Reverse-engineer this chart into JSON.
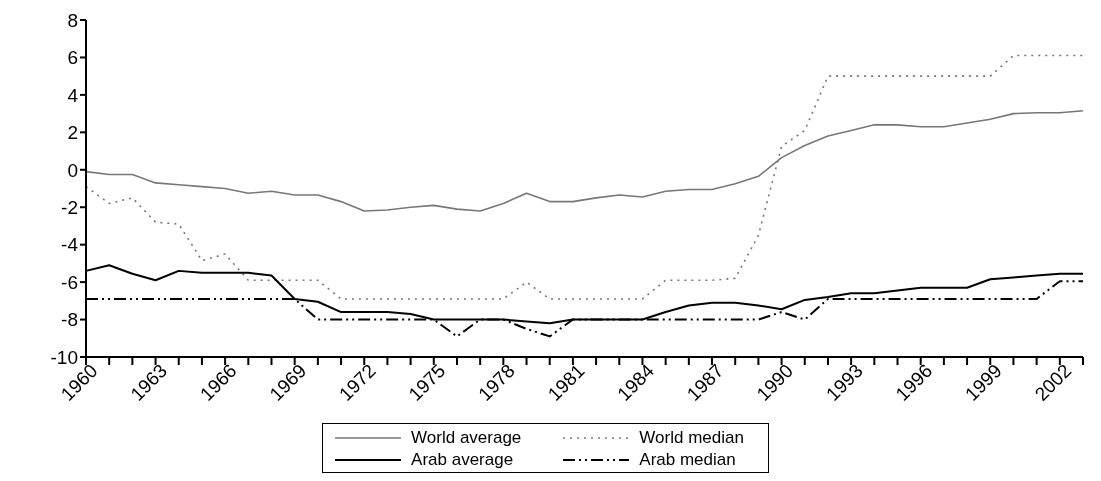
{
  "chart_data": {
    "type": "line",
    "categories": [
      "1960",
      null,
      null,
      "1963",
      null,
      null,
      "1966",
      null,
      null,
      "1969",
      null,
      null,
      "1972",
      null,
      null,
      "1975",
      null,
      null,
      "1978",
      null,
      null,
      "1981",
      null,
      null,
      "1984",
      null,
      null,
      "1987",
      null,
      null,
      "1990",
      null,
      null,
      "1993",
      null,
      null,
      "1996",
      null,
      null,
      "1999",
      null,
      null,
      "2002",
      null
    ],
    "series": [
      {
        "name": "World average",
        "color": "#777777",
        "line_style": "solid",
        "values": [
          -0.1,
          -0.25,
          -0.25,
          -0.7,
          -0.8,
          -0.9,
          -1.0,
          -1.25,
          -1.15,
          -1.35,
          -1.35,
          -1.7,
          -2.2,
          -2.15,
          -2.0,
          -1.9,
          -2.1,
          -2.2,
          -1.8,
          -1.25,
          -1.7,
          -1.7,
          -1.5,
          -1.35,
          -1.45,
          -1.15,
          -1.05,
          -1.05,
          -0.75,
          -0.35,
          0.65,
          1.3,
          1.8,
          2.1,
          2.4,
          2.4,
          2.3,
          2.3,
          2.5,
          2.7,
          3.0,
          3.05,
          3.05,
          3.15
        ]
      },
      {
        "name": "World median",
        "color": "#777777",
        "line_style": "dotted",
        "values": [
          -0.9,
          -1.8,
          -1.5,
          -2.8,
          -2.9,
          -4.85,
          -4.5,
          -5.9,
          -5.9,
          -5.9,
          -5.9,
          -6.9,
          -6.9,
          -6.9,
          -6.9,
          -6.9,
          -6.9,
          -6.9,
          -6.9,
          -6.0,
          -6.9,
          -6.9,
          -6.9,
          -6.9,
          -6.9,
          -5.9,
          -5.9,
          -5.9,
          -5.8,
          -3.5,
          1.25,
          2.1,
          5.0,
          5.0,
          5.0,
          5.0,
          5.0,
          5.0,
          5.0,
          5.0,
          6.1,
          6.1,
          6.1,
          6.1
        ]
      },
      {
        "name": "Arab average",
        "color": "#000000",
        "line_style": "solid",
        "values": [
          -5.4,
          -5.1,
          -5.55,
          -5.9,
          -5.4,
          -5.5,
          -5.5,
          -5.5,
          -5.65,
          -6.9,
          -7.05,
          -7.6,
          -7.6,
          -7.6,
          -7.7,
          -8.0,
          -8.0,
          -8.0,
          -8.0,
          -8.1,
          -8.2,
          -8.0,
          -8.0,
          -8.0,
          -8.0,
          -7.6,
          -7.25,
          -7.1,
          -7.1,
          -7.25,
          -7.45,
          -6.95,
          -6.8,
          -6.6,
          -6.6,
          -6.45,
          -6.3,
          -6.3,
          -6.3,
          -5.85,
          -5.75,
          -5.65,
          -5.55,
          -5.55
        ]
      },
      {
        "name": "Arab median",
        "color": "#000000",
        "line_style": "dashdot",
        "values": [
          -6.9,
          -6.9,
          -6.9,
          -6.9,
          -6.9,
          -6.9,
          -6.9,
          -6.9,
          -6.9,
          -6.9,
          -8.0,
          -8.0,
          -8.0,
          -8.0,
          -8.0,
          -8.0,
          -8.9,
          -8.0,
          -8.0,
          -8.5,
          -8.9,
          -8.0,
          -8.0,
          -8.0,
          -8.0,
          -8.0,
          -8.0,
          -8.0,
          -8.0,
          -8.0,
          -7.6,
          -8.0,
          -6.9,
          -6.9,
          -6.9,
          -6.9,
          -6.9,
          -6.9,
          -6.9,
          -6.9,
          -6.9,
          -6.9,
          -5.95,
          -5.95
        ]
      }
    ],
    "ylim": [
      -10,
      8
    ],
    "yticks": [
      -10,
      -8,
      -6,
      -4,
      -2,
      0,
      2,
      4,
      6,
      8
    ],
    "grid": false,
    "legend": "bottom",
    "marker": "none"
  }
}
